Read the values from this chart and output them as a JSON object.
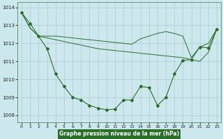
{
  "title": "Graphe pression niveau de la mer (hPa)",
  "background_color": "#cce8ee",
  "grid_color": "#aacccc",
  "line_color": "#2a6e2a",
  "title_bg": "#2a6e2a",
  "title_fg": "#ffffff",
  "xlim": [
    -0.5,
    23.5
  ],
  "ylim": [
    1007.6,
    1014.3
  ],
  "yticks": [
    1008,
    1009,
    1010,
    1011,
    1012,
    1013,
    1014
  ],
  "xticks": [
    0,
    1,
    2,
    3,
    4,
    5,
    6,
    7,
    8,
    9,
    10,
    11,
    12,
    13,
    14,
    15,
    16,
    17,
    18,
    19,
    20,
    21,
    22,
    23
  ],
  "series1": [
    1013.7,
    1013.1,
    1012.4,
    1011.7,
    1010.3,
    1009.6,
    1009.0,
    1008.85,
    1008.55,
    1008.4,
    1008.3,
    1008.35,
    1008.85,
    1008.85,
    1009.6,
    1009.55,
    1008.55,
    1009.0,
    1010.3,
    1011.05,
    1011.1,
    1011.8,
    1011.75,
    1012.8
  ],
  "series2": [
    1013.7,
    1012.85,
    1012.4,
    1012.3,
    1012.2,
    1012.1,
    1012.0,
    1011.9,
    1011.8,
    1011.7,
    1011.65,
    1011.6,
    1011.55,
    1011.5,
    1011.45,
    1011.4,
    1011.35,
    1011.3,
    1011.25,
    1011.2,
    1011.1,
    1011.0,
    1011.5,
    1012.8
  ],
  "series3": [
    1013.7,
    1012.85,
    1012.4,
    1012.4,
    1012.4,
    1012.35,
    1012.3,
    1012.25,
    1012.2,
    1012.15,
    1012.1,
    1012.05,
    1012.0,
    1011.95,
    1012.25,
    1012.4,
    1012.55,
    1012.65,
    1012.55,
    1012.4,
    1011.2,
    1011.8,
    1012.0,
    1012.8
  ]
}
